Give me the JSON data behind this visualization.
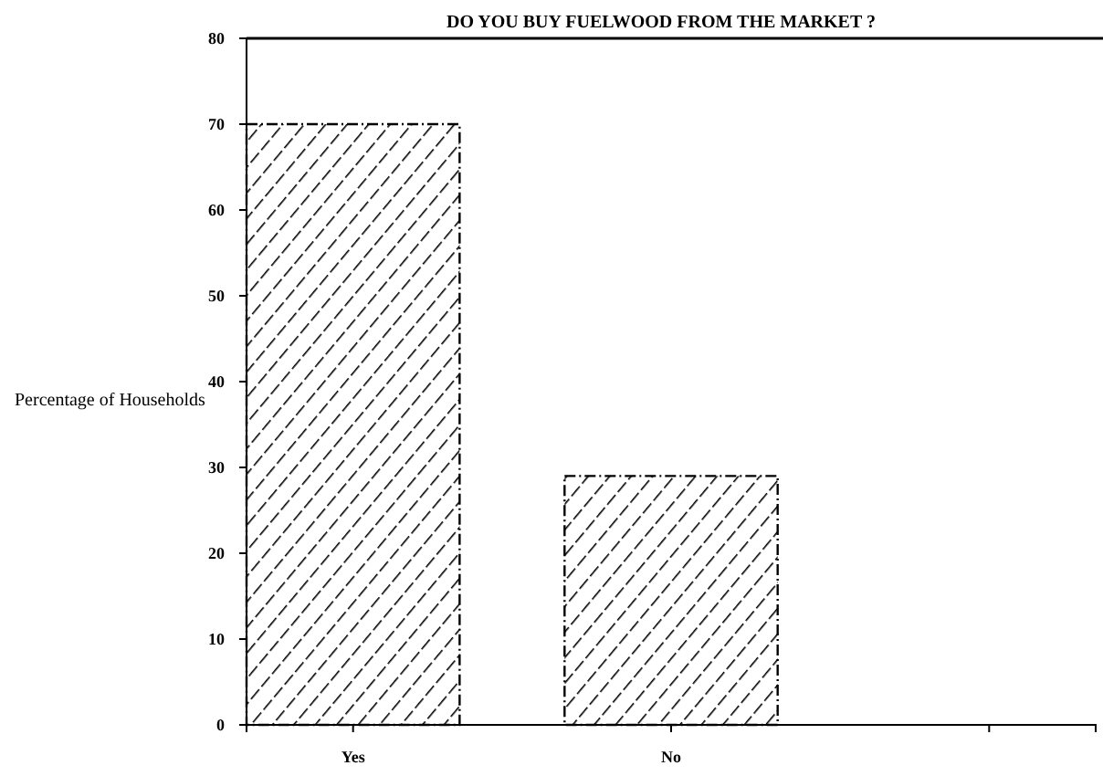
{
  "chart_data": {
    "type": "bar",
    "title": "DO YOU BUY FUELWOOD FROM THE MARKET ?",
    "ylabel": "Percentage of Households",
    "categories": [
      "Yes",
      "No",
      null
    ],
    "values": [
      70,
      29,
      null
    ],
    "color": "#000000",
    "ylim": [
      0,
      80
    ],
    "yticks": [
      0,
      10,
      20,
      30,
      40,
      50,
      60,
      70,
      80
    ],
    "grid": false
  }
}
